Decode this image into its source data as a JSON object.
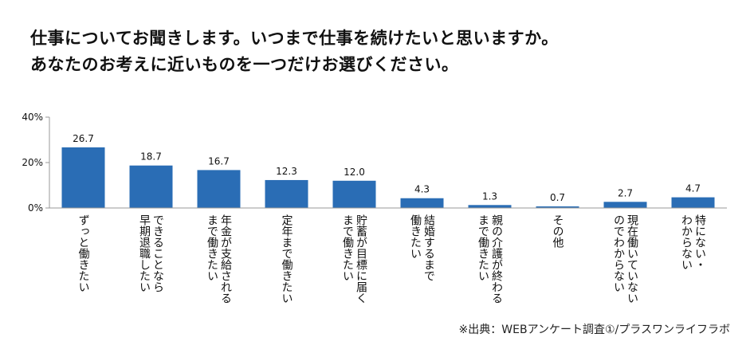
{
  "title_lines": [
    "仕事についてお聞きします。いつまで仕事を続けたいと思いますか。",
    "あなたのお考えに近いものを一つだけお選びください。"
  ],
  "source": "※出典：WEBアンケート調査①/プラスワンライフラボ",
  "colors": {
    "bar": "#2a6db5",
    "axis": "#999999",
    "text": "#111111"
  },
  "chart_data": {
    "type": "bar",
    "title": "",
    "xlabel": "",
    "ylabel": "",
    "ylim": [
      0,
      40
    ],
    "yticks": [
      0,
      20,
      40
    ],
    "ytick_labels": [
      "0%",
      "20%",
      "40%"
    ],
    "categories": [
      [
        "ずっと働きたい"
      ],
      [
        "できることなら",
        "早期退職したい"
      ],
      [
        "年金が支給される",
        "まで働きたい"
      ],
      [
        "定年まで働きたい"
      ],
      [
        "貯蓄が目標に届く",
        "まで働きたい"
      ],
      [
        "結婚するまで",
        "働きたい"
      ],
      [
        "親の介護が終わる",
        "まで働きたい"
      ],
      [
        "その他"
      ],
      [
        "現在働いていない",
        "のでわからない"
      ],
      [
        "特にない・",
        "わからない"
      ]
    ],
    "values": [
      26.7,
      18.7,
      16.7,
      12.3,
      12.0,
      4.3,
      1.3,
      0.7,
      2.7,
      4.7
    ],
    "data_labels": [
      "26.7",
      "18.7",
      "16.7",
      "12.3",
      "12.0",
      "4.3",
      "1.3",
      "0.7",
      "2.7",
      "4.7"
    ]
  }
}
